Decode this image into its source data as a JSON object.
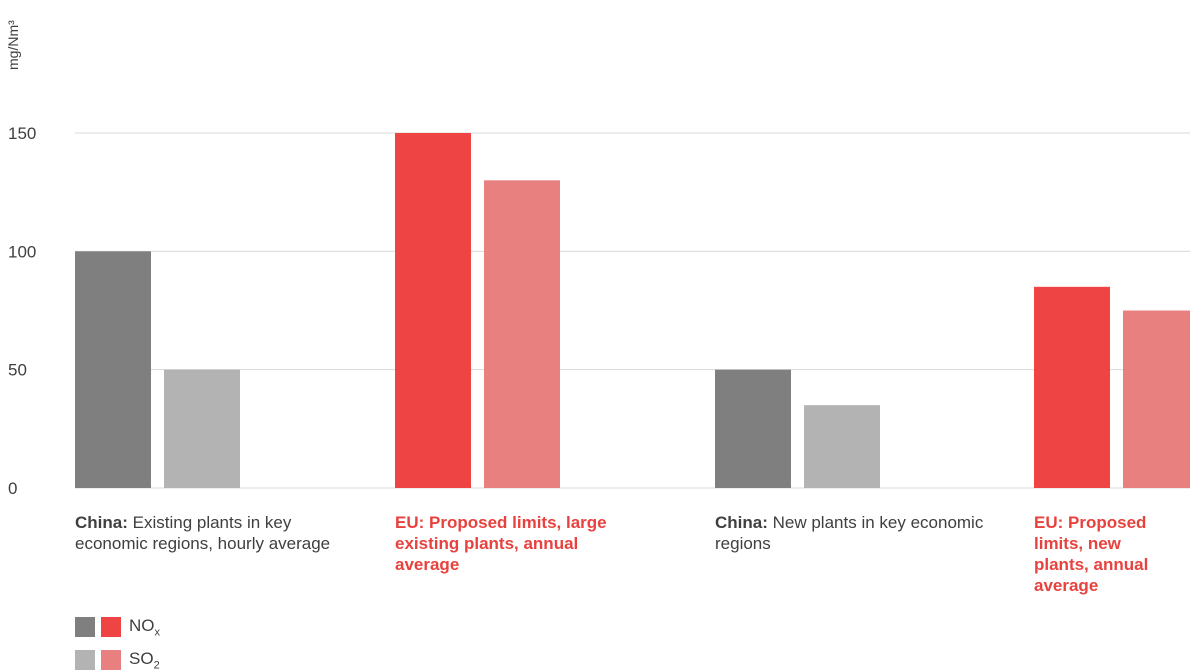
{
  "chart_data": {
    "type": "bar",
    "ylabel": "mg/Nm³",
    "ylim": [
      0,
      150
    ],
    "yticks": [
      0,
      50,
      100,
      150
    ],
    "grid": true,
    "legend_placement": "bottom-left",
    "categories": [
      {
        "prefix": "China:",
        "text": "Existing plants in key economic regions, hourly average",
        "region": "China"
      },
      {
        "prefix": "EU:",
        "text": "Proposed limits, large existing plants, annual average",
        "region": "EU"
      },
      {
        "prefix": "China:",
        "text": "New plants in key economic regions",
        "region": "China"
      },
      {
        "prefix": "EU:",
        "text": "Proposed limits, new plants, annual average",
        "region": "EU"
      }
    ],
    "series": [
      {
        "name": "NOx",
        "values": [
          100,
          150,
          50,
          85
        ]
      },
      {
        "name": "SO2",
        "values": [
          50,
          130,
          35,
          75
        ]
      }
    ],
    "colors": {
      "china_nox": "#7f7f7f",
      "china_so2": "#b3b3b4",
      "eu_nox": "#ef4444",
      "eu_so2": "#e88080",
      "grid": "#d9d9d9",
      "text": "#3f3f3f",
      "eu_text": "#e8423e"
    }
  },
  "legend": {
    "nox_main": "NO",
    "nox_sub": "x",
    "so2_main": "SO",
    "so2_sub": "2"
  }
}
